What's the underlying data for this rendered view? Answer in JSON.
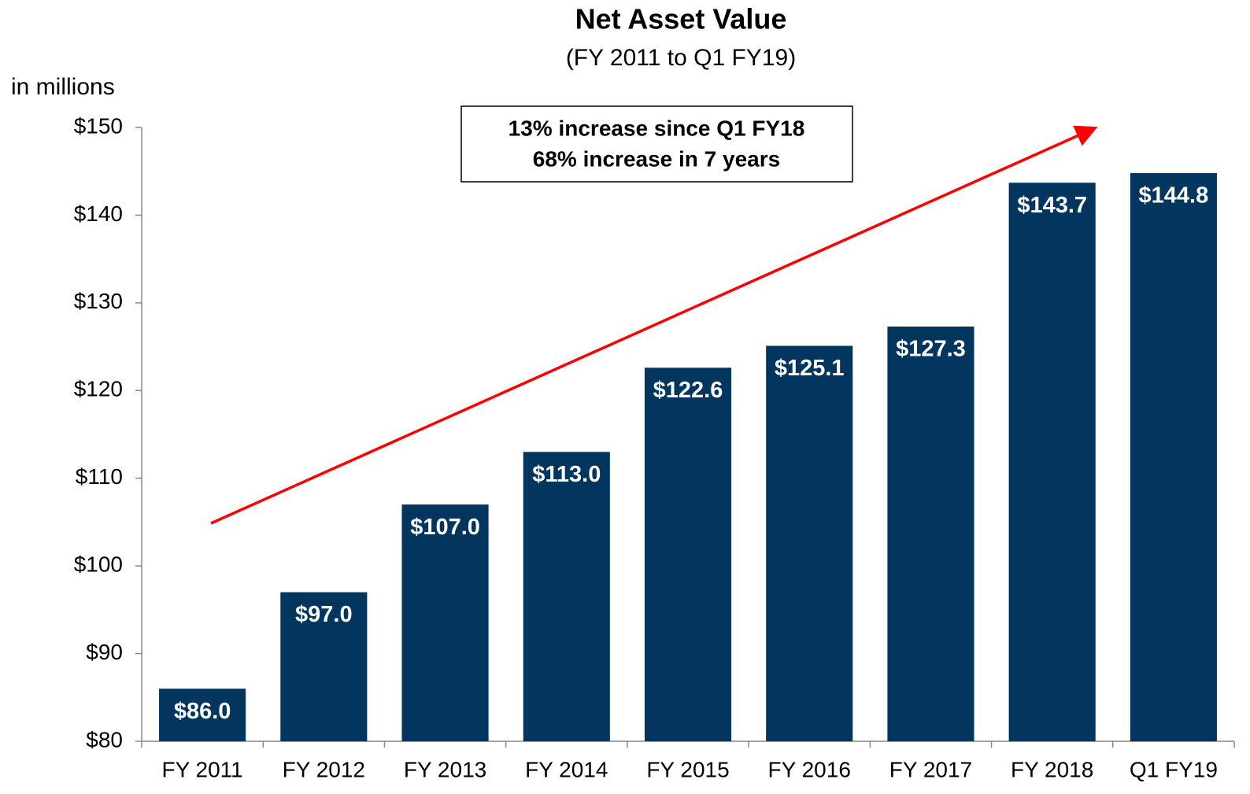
{
  "chart_data": {
    "type": "bar",
    "title": "Net Asset Value",
    "subtitle": "(FY 2011 to Q1 FY19)",
    "y_label": "in millions",
    "annotation": [
      "13% increase since Q1 FY18",
      "68% increase in 7 years"
    ],
    "categories": [
      "FY 2011",
      "FY 2012",
      "FY 2013",
      "FY 2014",
      "FY 2015",
      "FY 2016",
      "FY 2017",
      "FY 2018",
      "Q1 FY19"
    ],
    "values": [
      86.0,
      97.0,
      107.0,
      113.0,
      122.6,
      125.1,
      127.3,
      143.7,
      144.8
    ],
    "value_labels": [
      "$86.0",
      "$97.0",
      "$107.0",
      "$113.0",
      "$122.6",
      "$125.1",
      "$127.3",
      "$143.7",
      "$144.8"
    ],
    "color": "#03365e",
    "ylim": [
      80,
      150
    ],
    "yticks": [
      {
        "value": 80,
        "label": "$80"
      },
      {
        "value": 90,
        "label": "$90"
      },
      {
        "value": 100,
        "label": "$100"
      },
      {
        "value": 110,
        "label": "$110"
      },
      {
        "value": 120,
        "label": "$120"
      },
      {
        "value": 130,
        "label": "$130"
      },
      {
        "value": 140,
        "label": "$140"
      },
      {
        "value": 150,
        "label": "$150"
      }
    ],
    "grid": false
  }
}
